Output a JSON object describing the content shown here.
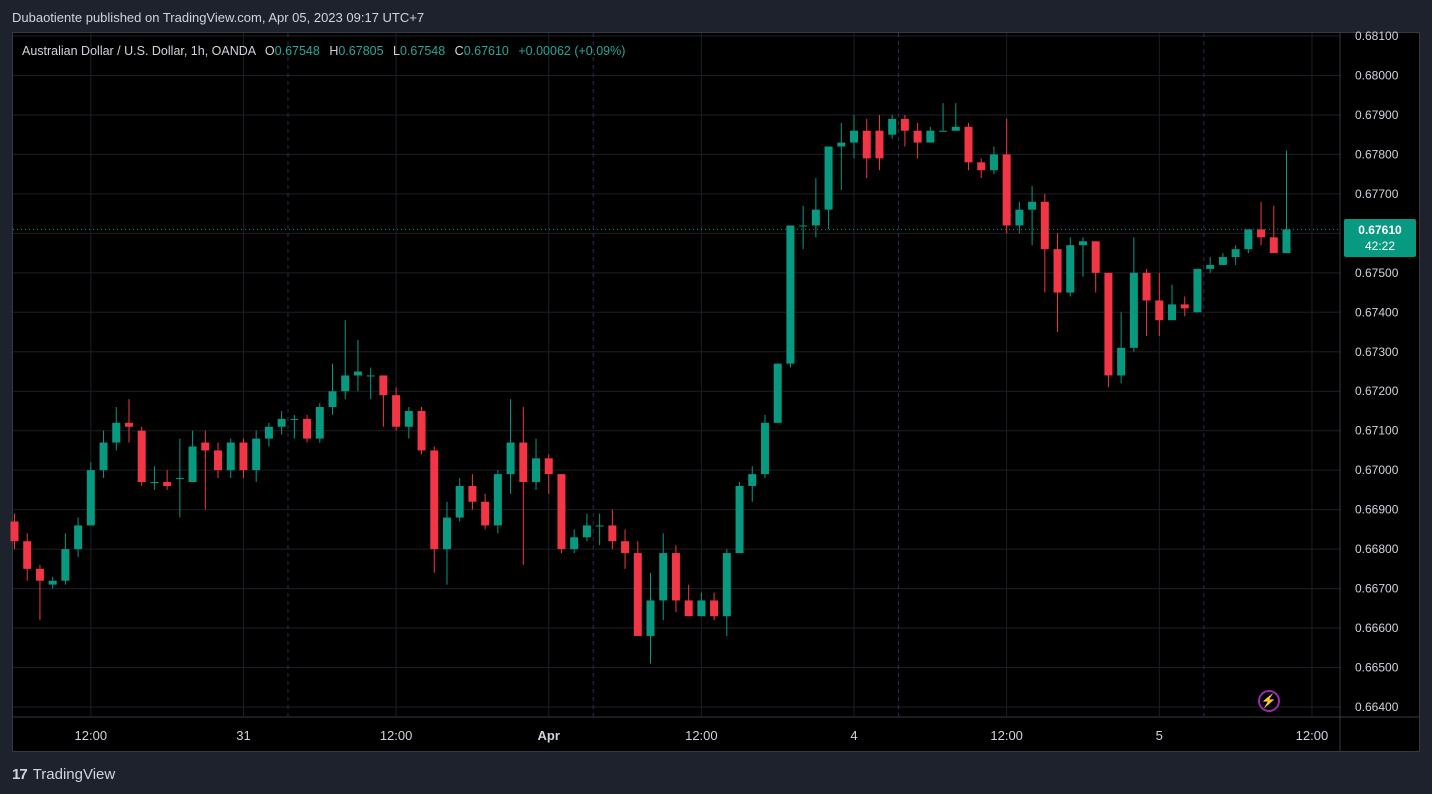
{
  "header": {
    "publisher_text": "Dubaotiente published on TradingView.com, Apr 05, 2023 09:17 UTC+7"
  },
  "legend": {
    "symbol": "Australian Dollar / U.S. Dollar, 1h, OANDA",
    "o_label": "O",
    "o_value": "0.67548",
    "h_label": "H",
    "h_value": "0.67805",
    "l_label": "L",
    "l_value": "0.67548",
    "c_label": "C",
    "c_value": "0.67610",
    "change": "+0.00062 (+0.09%)"
  },
  "price_tag": {
    "price": "0.67610",
    "countdown": "42:22"
  },
  "footer": {
    "brand": "TradingView",
    "logo_text": "17"
  },
  "colors": {
    "up": "#089981",
    "down": "#f23645",
    "background": "#000000",
    "grid": "#1c1f27",
    "text": "#d1d4dc",
    "session": "#2a2e5a"
  },
  "chart_data": {
    "type": "candlestick",
    "ylim": [
      0.664,
      0.681
    ],
    "y_ticks": [
      "0.68100",
      "0.68000",
      "0.67900",
      "0.67800",
      "0.67700",
      "0.67600",
      "0.67500",
      "0.67400",
      "0.67300",
      "0.67200",
      "0.67100",
      "0.67000",
      "0.66900",
      "0.66800",
      "0.66700",
      "0.66600",
      "0.66500",
      "0.66400"
    ],
    "x_ticks": [
      {
        "label": "12:00",
        "index": 6
      },
      {
        "label": "31",
        "index": 18
      },
      {
        "label": "12:00",
        "index": 30
      },
      {
        "label": "Apr",
        "index": 42
      },
      {
        "label": "12:00",
        "index": 54
      },
      {
        "label": "4",
        "index": 66
      },
      {
        "label": "12:00",
        "index": 78
      },
      {
        "label": "5",
        "index": 90
      },
      {
        "label": "12:00",
        "index": 102
      }
    ],
    "session_lines": [
      21.5,
      45.5,
      69.5,
      93.5
    ],
    "current_price": 0.6761,
    "candles": [
      {
        "o": 0.6687,
        "h": 0.6689,
        "l": 0.668,
        "c": 0.6682
      },
      {
        "o": 0.6682,
        "h": 0.6684,
        "l": 0.6672,
        "c": 0.6675
      },
      {
        "o": 0.6675,
        "h": 0.6676,
        "l": 0.6662,
        "c": 0.6672
      },
      {
        "o": 0.6671,
        "h": 0.6673,
        "l": 0.667,
        "c": 0.6672
      },
      {
        "o": 0.6672,
        "h": 0.6684,
        "l": 0.6671,
        "c": 0.668
      },
      {
        "o": 0.668,
        "h": 0.6688,
        "l": 0.6678,
        "c": 0.6686
      },
      {
        "o": 0.6686,
        "h": 0.6702,
        "l": 0.6686,
        "c": 0.67
      },
      {
        "o": 0.67,
        "h": 0.671,
        "l": 0.6698,
        "c": 0.6707
      },
      {
        "o": 0.6707,
        "h": 0.6716,
        "l": 0.6705,
        "c": 0.6712
      },
      {
        "o": 0.6712,
        "h": 0.6718,
        "l": 0.6707,
        "c": 0.6711
      },
      {
        "o": 0.671,
        "h": 0.6711,
        "l": 0.6696,
        "c": 0.6697
      },
      {
        "o": 0.6697,
        "h": 0.6701,
        "l": 0.6695,
        "c": 0.6697
      },
      {
        "o": 0.6697,
        "h": 0.67,
        "l": 0.6695,
        "c": 0.6696
      },
      {
        "o": 0.6698,
        "h": 0.6708,
        "l": 0.6688,
        "c": 0.6698
      },
      {
        "o": 0.6697,
        "h": 0.671,
        "l": 0.6697,
        "c": 0.6706
      },
      {
        "o": 0.6707,
        "h": 0.671,
        "l": 0.669,
        "c": 0.6705
      },
      {
        "o": 0.6705,
        "h": 0.6707,
        "l": 0.6698,
        "c": 0.67
      },
      {
        "o": 0.67,
        "h": 0.6708,
        "l": 0.6698,
        "c": 0.6707
      },
      {
        "o": 0.6707,
        "h": 0.6708,
        "l": 0.6698,
        "c": 0.67
      },
      {
        "o": 0.67,
        "h": 0.671,
        "l": 0.6697,
        "c": 0.6708
      },
      {
        "o": 0.6708,
        "h": 0.6712,
        "l": 0.6706,
        "c": 0.6711
      },
      {
        "o": 0.6711,
        "h": 0.6715,
        "l": 0.6709,
        "c": 0.6713
      },
      {
        "o": 0.6713,
        "h": 0.6714,
        "l": 0.6708,
        "c": 0.6713
      },
      {
        "o": 0.6713,
        "h": 0.6714,
        "l": 0.6707,
        "c": 0.6708
      },
      {
        "o": 0.6708,
        "h": 0.6717,
        "l": 0.6707,
        "c": 0.6716
      },
      {
        "o": 0.6716,
        "h": 0.6727,
        "l": 0.6714,
        "c": 0.672
      },
      {
        "o": 0.672,
        "h": 0.6738,
        "l": 0.6718,
        "c": 0.6724
      },
      {
        "o": 0.6724,
        "h": 0.6733,
        "l": 0.672,
        "c": 0.6725
      },
      {
        "o": 0.6724,
        "h": 0.6726,
        "l": 0.6718,
        "c": 0.6724
      },
      {
        "o": 0.6724,
        "h": 0.6724,
        "l": 0.6711,
        "c": 0.6719
      },
      {
        "o": 0.6719,
        "h": 0.6721,
        "l": 0.671,
        "c": 0.6711
      },
      {
        "o": 0.6711,
        "h": 0.6716,
        "l": 0.6708,
        "c": 0.6715
      },
      {
        "o": 0.6715,
        "h": 0.6716,
        "l": 0.6704,
        "c": 0.6705
      },
      {
        "o": 0.6705,
        "h": 0.6706,
        "l": 0.6674,
        "c": 0.668
      },
      {
        "o": 0.668,
        "h": 0.6692,
        "l": 0.6671,
        "c": 0.6688
      },
      {
        "o": 0.6688,
        "h": 0.6698,
        "l": 0.6687,
        "c": 0.6696
      },
      {
        "o": 0.6696,
        "h": 0.6699,
        "l": 0.669,
        "c": 0.6692
      },
      {
        "o": 0.6692,
        "h": 0.6694,
        "l": 0.6685,
        "c": 0.6686
      },
      {
        "o": 0.6686,
        "h": 0.67,
        "l": 0.6684,
        "c": 0.6699
      },
      {
        "o": 0.6699,
        "h": 0.6718,
        "l": 0.6694,
        "c": 0.6707
      },
      {
        "o": 0.6707,
        "h": 0.6716,
        "l": 0.6676,
        "c": 0.6697
      },
      {
        "o": 0.6697,
        "h": 0.6708,
        "l": 0.6695,
        "c": 0.6703
      },
      {
        "o": 0.6703,
        "h": 0.6704,
        "l": 0.6694,
        "c": 0.6699
      },
      {
        "o": 0.6699,
        "h": 0.6699,
        "l": 0.6679,
        "c": 0.668
      },
      {
        "o": 0.668,
        "h": 0.6685,
        "l": 0.6679,
        "c": 0.6683
      },
      {
        "o": 0.6683,
        "h": 0.6689,
        "l": 0.6682,
        "c": 0.6686
      },
      {
        "o": 0.6686,
        "h": 0.6689,
        "l": 0.6681,
        "c": 0.6686
      },
      {
        "o": 0.6686,
        "h": 0.669,
        "l": 0.668,
        "c": 0.6682
      },
      {
        "o": 0.6682,
        "h": 0.6685,
        "l": 0.6675,
        "c": 0.6679
      },
      {
        "o": 0.6679,
        "h": 0.6682,
        "l": 0.6659,
        "c": 0.6658
      },
      {
        "o": 0.6658,
        "h": 0.6674,
        "l": 0.6651,
        "c": 0.6667
      },
      {
        "o": 0.6667,
        "h": 0.6684,
        "l": 0.6662,
        "c": 0.6679
      },
      {
        "o": 0.6679,
        "h": 0.6681,
        "l": 0.6664,
        "c": 0.6667
      },
      {
        "o": 0.6667,
        "h": 0.6671,
        "l": 0.6663,
        "c": 0.6663
      },
      {
        "o": 0.6663,
        "h": 0.6669,
        "l": 0.6663,
        "c": 0.6667
      },
      {
        "o": 0.6667,
        "h": 0.6669,
        "l": 0.6662,
        "c": 0.6663
      },
      {
        "o": 0.6663,
        "h": 0.668,
        "l": 0.6658,
        "c": 0.6679
      },
      {
        "o": 0.6679,
        "h": 0.6697,
        "l": 0.6679,
        "c": 0.6696
      },
      {
        "o": 0.6696,
        "h": 0.6701,
        "l": 0.6692,
        "c": 0.6699
      },
      {
        "o": 0.6699,
        "h": 0.6714,
        "l": 0.6698,
        "c": 0.6712
      },
      {
        "o": 0.6712,
        "h": 0.6727,
        "l": 0.6712,
        "c": 0.6727
      },
      {
        "o": 0.6727,
        "h": 0.6762,
        "l": 0.6726,
        "c": 0.6762
      },
      {
        "o": 0.6762,
        "h": 0.6767,
        "l": 0.6756,
        "c": 0.6762
      },
      {
        "o": 0.6762,
        "h": 0.6774,
        "l": 0.6759,
        "c": 0.6766
      },
      {
        "o": 0.6766,
        "h": 0.6782,
        "l": 0.6761,
        "c": 0.6782
      },
      {
        "o": 0.6782,
        "h": 0.6788,
        "l": 0.6771,
        "c": 0.6783
      },
      {
        "o": 0.6783,
        "h": 0.679,
        "l": 0.6779,
        "c": 0.6786
      },
      {
        "o": 0.6786,
        "h": 0.6789,
        "l": 0.6774,
        "c": 0.6779
      },
      {
        "o": 0.6786,
        "h": 0.679,
        "l": 0.6776,
        "c": 0.6779
      },
      {
        "o": 0.6785,
        "h": 0.679,
        "l": 0.6784,
        "c": 0.6789
      },
      {
        "o": 0.6789,
        "h": 0.679,
        "l": 0.6782,
        "c": 0.6786
      },
      {
        "o": 0.6786,
        "h": 0.6788,
        "l": 0.6779,
        "c": 0.6783
      },
      {
        "o": 0.6783,
        "h": 0.6787,
        "l": 0.6783,
        "c": 0.6786
      },
      {
        "o": 0.6786,
        "h": 0.6793,
        "l": 0.6786,
        "c": 0.6786
      },
      {
        "o": 0.6786,
        "h": 0.6793,
        "l": 0.6786,
        "c": 0.6787
      },
      {
        "o": 0.6787,
        "h": 0.6788,
        "l": 0.6776,
        "c": 0.6778
      },
      {
        "o": 0.6778,
        "h": 0.6779,
        "l": 0.6774,
        "c": 0.6776
      },
      {
        "o": 0.6776,
        "h": 0.6782,
        "l": 0.6775,
        "c": 0.678
      },
      {
        "o": 0.678,
        "h": 0.6789,
        "l": 0.676,
        "c": 0.6762
      },
      {
        "o": 0.6762,
        "h": 0.6768,
        "l": 0.676,
        "c": 0.6766
      },
      {
        "o": 0.6766,
        "h": 0.6772,
        "l": 0.6757,
        "c": 0.6768
      },
      {
        "o": 0.6768,
        "h": 0.677,
        "l": 0.6745,
        "c": 0.6756
      },
      {
        "o": 0.6756,
        "h": 0.676,
        "l": 0.6735,
        "c": 0.6745
      },
      {
        "o": 0.6745,
        "h": 0.6759,
        "l": 0.6744,
        "c": 0.6757
      },
      {
        "o": 0.6757,
        "h": 0.6759,
        "l": 0.6749,
        "c": 0.6758
      },
      {
        "o": 0.6758,
        "h": 0.6758,
        "l": 0.6745,
        "c": 0.675
      },
      {
        "o": 0.675,
        "h": 0.675,
        "l": 0.6721,
        "c": 0.6724
      },
      {
        "o": 0.6724,
        "h": 0.674,
        "l": 0.6722,
        "c": 0.6731
      },
      {
        "o": 0.6731,
        "h": 0.6759,
        "l": 0.673,
        "c": 0.675
      },
      {
        "o": 0.675,
        "h": 0.6751,
        "l": 0.6734,
        "c": 0.6743
      },
      {
        "o": 0.6743,
        "h": 0.675,
        "l": 0.6734,
        "c": 0.6738
      },
      {
        "o": 0.6738,
        "h": 0.6747,
        "l": 0.6738,
        "c": 0.6742
      },
      {
        "o": 0.6742,
        "h": 0.6744,
        "l": 0.6739,
        "c": 0.6741
      },
      {
        "o": 0.674,
        "h": 0.6751,
        "l": 0.674,
        "c": 0.6751
      },
      {
        "o": 0.6751,
        "h": 0.6754,
        "l": 0.675,
        "c": 0.6752
      },
      {
        "o": 0.6752,
        "h": 0.6755,
        "l": 0.6752,
        "c": 0.6754
      },
      {
        "o": 0.6754,
        "h": 0.6757,
        "l": 0.6752,
        "c": 0.6756
      },
      {
        "o": 0.6756,
        "h": 0.6761,
        "l": 0.6755,
        "c": 0.6761
      },
      {
        "o": 0.6761,
        "h": 0.6768,
        "l": 0.6757,
        "c": 0.6759
      },
      {
        "o": 0.6759,
        "h": 0.6767,
        "l": 0.6755,
        "c": 0.6755
      },
      {
        "o": 0.6755,
        "h": 0.6781,
        "l": 0.6755,
        "c": 0.6761
      }
    ]
  }
}
